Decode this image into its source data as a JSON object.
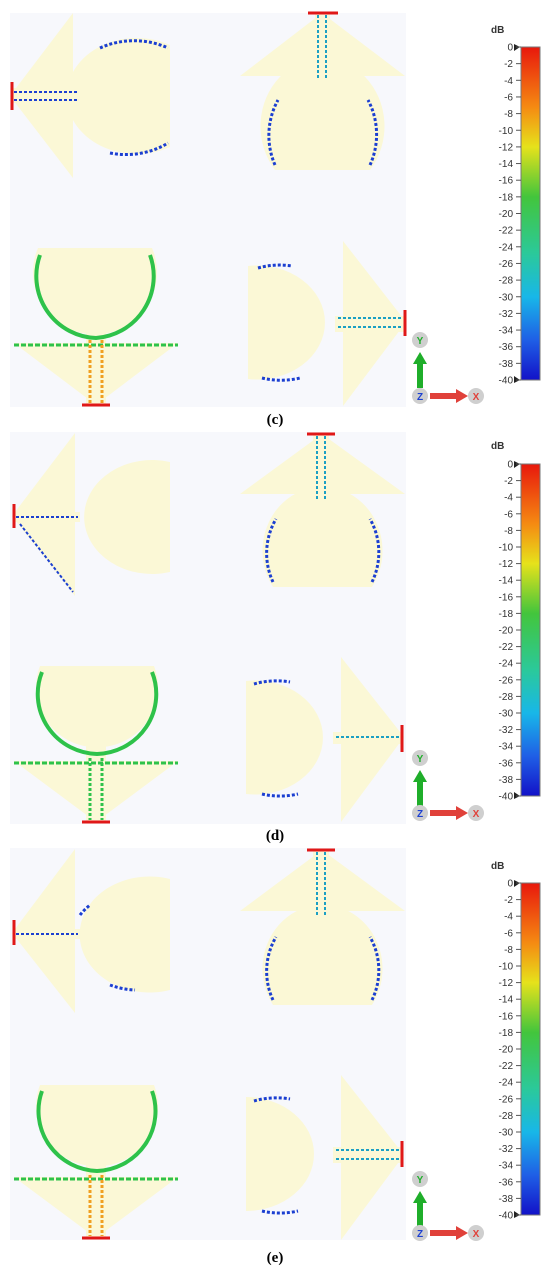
{
  "panels": [
    {
      "id": "c",
      "caption": "(c)"
    },
    {
      "id": "d",
      "caption": "(d)"
    },
    {
      "id": "e",
      "caption": "(e)"
    }
  ],
  "colorbar": {
    "unit": "dB",
    "ticks": [
      "0",
      "-2",
      "-4",
      "-6",
      "-8",
      "-10",
      "-12",
      "-14",
      "-16",
      "-18",
      "-20",
      "-22",
      "-24",
      "-26",
      "-28",
      "-30",
      "-32",
      "-34",
      "-36",
      "-38",
      "-40"
    ]
  },
  "axes": {
    "y": "Y",
    "z": "Z",
    "x": "X"
  },
  "colors": {
    "background": "#f7f8fc",
    "patch": "#fbf8d6",
    "port": "#e01818",
    "axis_y": "#1fae2a",
    "axis_x": "#e0413a"
  }
}
